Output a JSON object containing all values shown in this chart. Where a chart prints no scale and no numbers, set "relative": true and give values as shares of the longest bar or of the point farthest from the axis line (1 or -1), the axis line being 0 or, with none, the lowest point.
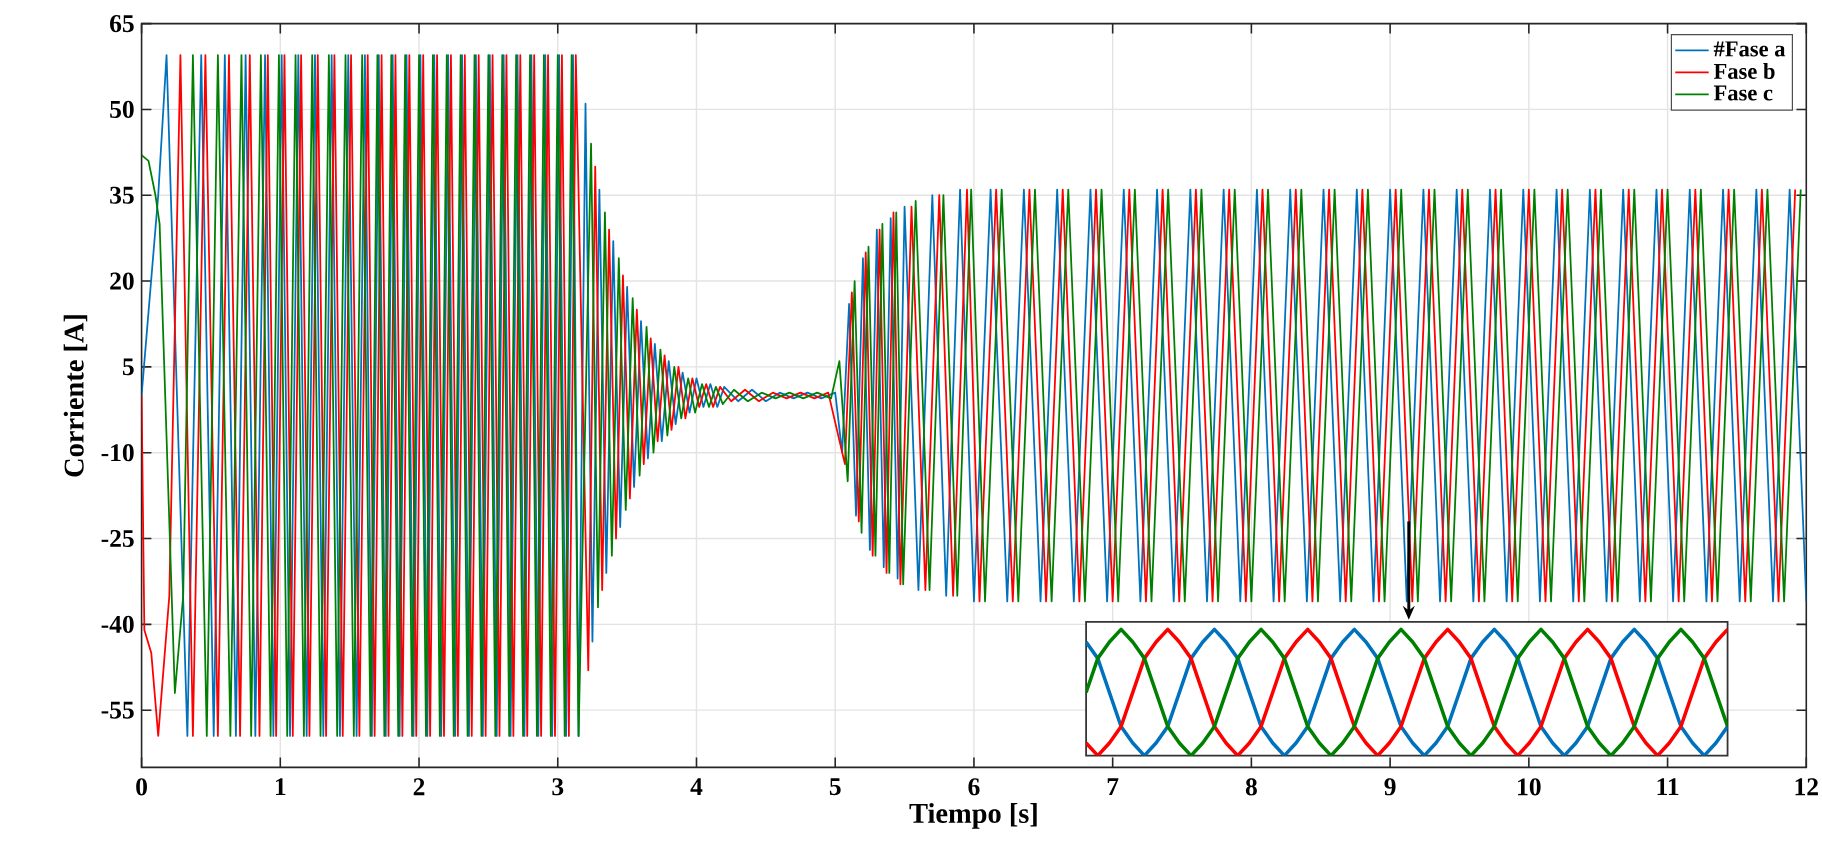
{
  "chart_data": [
    {
      "type": "line",
      "xlabel": "Tiempo [s]",
      "ylabel": "Corriente [A]",
      "xlim": [
        0,
        12
      ],
      "ylim": [
        -65,
        65
      ],
      "xticks": [
        0,
        1,
        2,
        3,
        4,
        5,
        6,
        7,
        8,
        9,
        10,
        11,
        12
      ],
      "yticks": [
        -55,
        -40,
        -25,
        -10,
        5,
        20,
        35,
        50,
        65
      ],
      "grid": true,
      "legend": "top right",
      "series": [
        {
          "name": "#Fase a",
          "color": "#0072bd",
          "x": [
            0,
            0.12,
            0.18,
            0.33,
            0.43,
            0.52,
            0.6,
            0.68,
            0.75,
            0.82,
            0.89,
            0.95,
            1.01,
            1.07,
            1.13,
            1.19,
            1.25,
            1.31,
            1.37,
            1.43,
            1.49,
            1.55,
            1.61,
            1.66,
            1.71,
            1.76,
            1.81,
            1.86,
            1.91,
            1.96,
            2.01,
            2.06,
            2.11,
            2.16,
            2.21,
            2.26,
            2.31,
            2.36,
            2.41,
            2.46,
            2.51,
            2.56,
            2.61,
            2.66,
            2.71,
            2.76,
            2.81,
            2.86,
            2.91,
            2.96,
            3.01,
            3.06,
            3.11,
            3.15,
            3.2,
            3.25,
            3.3,
            3.35,
            3.4,
            3.45,
            3.5,
            3.55,
            3.6,
            3.65,
            3.7,
            3.75,
            3.8,
            3.85,
            3.9,
            3.95,
            4.0,
            4.05,
            4.1,
            4.15,
            4.2,
            4.3,
            4.4,
            4.5,
            4.6,
            4.7,
            4.8,
            4.9,
            5.0,
            5.05,
            5.1,
            5.15,
            5.2,
            5.25,
            5.3,
            5.35,
            5.4,
            5.45,
            5.5,
            5.6,
            5.7,
            5.8,
            5.9,
            6.0,
            6.12,
            6.24,
            6.36,
            6.48,
            6.6,
            6.72,
            6.84,
            6.96,
            7.08,
            7.2,
            7.32,
            7.44,
            7.56,
            7.68,
            7.8,
            7.92,
            8.04,
            8.16,
            8.28,
            8.4,
            8.52,
            8.64,
            8.76,
            8.88,
            9.0,
            9.12,
            9.24,
            9.36,
            9.48,
            9.6,
            9.72,
            9.84,
            9.96,
            10.08,
            10.2,
            10.32,
            10.44,
            10.56,
            10.68,
            10.8,
            10.92,
            11.04,
            11.16,
            11.28,
            11.4,
            11.52,
            11.64,
            11.76,
            11.88,
            12.0
          ],
          "values": [
            0,
            35,
            59.5,
            -59.5,
            59.5,
            -59.5,
            59.5,
            -59.5,
            59.5,
            -59.5,
            59.5,
            -59.5,
            59.5,
            -59.5,
            59.5,
            -59.5,
            59.5,
            -59.5,
            59.5,
            -59.5,
            59.5,
            -59.5,
            59.5,
            -59.5,
            59.5,
            -59.5,
            59.5,
            -59.5,
            59.5,
            -59.5,
            59.5,
            -59.5,
            59.5,
            -59.5,
            59.5,
            -59.5,
            59.5,
            -59.5,
            59.5,
            -59.5,
            59.5,
            -59.5,
            59.5,
            -59.5,
            59.5,
            -59.5,
            59.5,
            -59.5,
            59.5,
            -59.5,
            59.5,
            -59.5,
            59.5,
            -59.5,
            51,
            -43,
            36,
            -31,
            27,
            -23,
            19,
            -16,
            13,
            -11,
            9,
            -8,
            6,
            -5,
            4,
            -3,
            3,
            -2,
            2,
            -2,
            1.5,
            -1,
            1,
            -1,
            0.5,
            -0.5,
            0.5,
            -0.5,
            0.5,
            -10,
            16,
            -21,
            24,
            -27,
            29,
            -30,
            31,
            -32,
            33,
            -34,
            35,
            -35,
            36,
            -36,
            36,
            -36,
            36,
            -36,
            36,
            -36,
            36,
            -36,
            36,
            -36,
            36,
            -36,
            36,
            -36,
            36,
            -36,
            36,
            -36,
            36,
            -36,
            36,
            -36,
            36,
            -36,
            36,
            -36,
            36,
            -36,
            36,
            -36,
            36,
            -36,
            36,
            -36,
            36,
            -36,
            36,
            -36,
            36,
            -36,
            36,
            -36,
            36,
            -36,
            36,
            -36,
            36,
            -36,
            36,
            -36
          ]
        },
        {
          "name": "Fase b",
          "color": "#ff0000",
          "x": [
            0,
            0.02,
            0.07,
            0.12,
            0.2,
            0.28,
            0.37,
            0.46,
            0.55,
            0.63,
            0.71,
            0.78,
            0.85,
            0.91,
            0.97,
            1.03,
            1.09,
            1.15,
            1.21,
            1.27,
            1.33,
            1.39,
            1.45,
            1.51,
            1.57,
            1.63,
            1.68,
            1.73,
            1.78,
            1.83,
            1.88,
            1.93,
            1.98,
            2.03,
            2.08,
            2.13,
            2.18,
            2.23,
            2.28,
            2.33,
            2.38,
            2.43,
            2.48,
            2.53,
            2.58,
            2.63,
            2.68,
            2.73,
            2.78,
            2.83,
            2.88,
            2.93,
            2.98,
            3.03,
            3.08,
            3.13,
            3.22,
            3.27,
            3.32,
            3.37,
            3.42,
            3.47,
            3.52,
            3.57,
            3.62,
            3.67,
            3.72,
            3.77,
            3.82,
            3.87,
            3.92,
            3.97,
            4.02,
            4.07,
            4.12,
            4.17,
            4.25,
            4.35,
            4.45,
            4.55,
            4.65,
            4.75,
            4.85,
            4.95,
            5.07,
            5.12,
            5.17,
            5.22,
            5.27,
            5.32,
            5.37,
            5.42,
            5.47,
            5.55,
            5.65,
            5.75,
            5.85,
            5.95,
            6.04,
            6.16,
            6.28,
            6.4,
            6.52,
            6.64,
            6.76,
            6.88,
            7.0,
            7.12,
            7.24,
            7.36,
            7.48,
            7.6,
            7.72,
            7.84,
            7.96,
            8.08,
            8.2,
            8.32,
            8.44,
            8.56,
            8.68,
            8.8,
            8.92,
            9.04,
            9.16,
            9.28,
            9.4,
            9.52,
            9.64,
            9.76,
            9.88,
            10.0,
            10.12,
            10.24,
            10.36,
            10.48,
            10.6,
            10.72,
            10.84,
            10.96,
            11.08,
            11.2,
            11.32,
            11.44,
            11.56,
            11.68,
            11.8,
            11.92
          ],
          "values": [
            0,
            -41,
            -45,
            -59.5,
            -35,
            59.5,
            -59.5,
            59.5,
            -59.5,
            59.5,
            -59.5,
            59.5,
            -59.5,
            59.5,
            -59.5,
            59.5,
            -59.5,
            59.5,
            -59.5,
            59.5,
            -59.5,
            59.5,
            -59.5,
            59.5,
            -59.5,
            59.5,
            -59.5,
            59.5,
            -59.5,
            59.5,
            -59.5,
            59.5,
            -59.5,
            59.5,
            -59.5,
            59.5,
            -59.5,
            59.5,
            -59.5,
            59.5,
            -59.5,
            59.5,
            -59.5,
            59.5,
            -59.5,
            59.5,
            -59.5,
            59.5,
            -59.5,
            59.5,
            -59.5,
            59.5,
            -59.5,
            59.5,
            -59.5,
            59.5,
            -48,
            40,
            -34,
            29,
            -25,
            21,
            -18,
            15,
            -12,
            10,
            -8,
            7,
            -6,
            5,
            -4,
            3,
            -2,
            2,
            -2,
            1.5,
            -1,
            1,
            -1,
            0.5,
            -0.5,
            0.5,
            -0.5,
            0.5,
            -12,
            18,
            -22,
            25,
            -28,
            29,
            -31,
            32,
            -33,
            33,
            -34,
            35,
            -35,
            36,
            -36,
            36,
            -36,
            36,
            -36,
            36,
            -36,
            36,
            -36,
            36,
            -36,
            36,
            -36,
            36,
            -36,
            36,
            -36,
            36,
            -36,
            36,
            -36,
            36,
            -36,
            36,
            -36,
            36,
            -36,
            36,
            -36,
            36,
            -36,
            36,
            -36,
            36,
            -36,
            36,
            -36,
            36,
            -36,
            36,
            -36,
            36,
            -36,
            36,
            -36,
            36,
            -36,
            36,
            -36,
            36
          ]
        },
        {
          "name": "Fase c",
          "color": "#008000",
          "x": [
            0,
            0.05,
            0.1,
            0.13,
            0.24,
            0.3,
            0.37,
            0.47,
            0.55,
            0.64,
            0.72,
            0.79,
            0.86,
            0.93,
            0.99,
            1.05,
            1.11,
            1.17,
            1.23,
            1.29,
            1.35,
            1.41,
            1.47,
            1.53,
            1.59,
            1.65,
            1.7,
            1.75,
            1.8,
            1.85,
            1.9,
            1.95,
            2.0,
            2.05,
            2.1,
            2.15,
            2.2,
            2.25,
            2.3,
            2.35,
            2.4,
            2.45,
            2.5,
            2.55,
            2.6,
            2.65,
            2.7,
            2.75,
            2.8,
            2.85,
            2.9,
            2.95,
            3.0,
            3.05,
            3.1,
            3.15,
            3.24,
            3.29,
            3.34,
            3.39,
            3.44,
            3.49,
            3.54,
            3.59,
            3.64,
            3.69,
            3.74,
            3.79,
            3.84,
            3.89,
            3.94,
            3.99,
            4.04,
            4.09,
            4.14,
            4.19,
            4.27,
            4.37,
            4.47,
            4.57,
            4.67,
            4.77,
            4.87,
            4.97,
            5.03,
            5.09,
            5.14,
            5.19,
            5.24,
            5.29,
            5.34,
            5.39,
            5.44,
            5.49,
            5.58,
            5.68,
            5.78,
            5.88,
            5.98,
            6.08,
            6.2,
            6.32,
            6.44,
            6.56,
            6.68,
            6.8,
            6.92,
            7.04,
            7.16,
            7.28,
            7.4,
            7.52,
            7.64,
            7.76,
            7.88,
            8.0,
            8.12,
            8.24,
            8.36,
            8.48,
            8.6,
            8.72,
            8.84,
            8.96,
            9.08,
            9.2,
            9.32,
            9.44,
            9.56,
            9.68,
            9.8,
            9.92,
            10.04,
            10.16,
            10.28,
            10.4,
            10.52,
            10.64,
            10.76,
            10.88,
            11.0,
            11.12,
            11.24,
            11.36,
            11.48,
            11.6,
            11.72,
            11.84,
            11.96
          ],
          "values": [
            42,
            41,
            35,
            30,
            -52,
            -35,
            59.5,
            -59.5,
            59.5,
            -59.5,
            59.5,
            -59.5,
            59.5,
            -59.5,
            59.5,
            -59.5,
            59.5,
            -59.5,
            59.5,
            -59.5,
            59.5,
            -59.5,
            59.5,
            -59.5,
            59.5,
            -59.5,
            59.5,
            -59.5,
            59.5,
            -59.5,
            59.5,
            -59.5,
            59.5,
            -59.5,
            59.5,
            -59.5,
            59.5,
            -59.5,
            59.5,
            -59.5,
            59.5,
            -59.5,
            59.5,
            -59.5,
            59.5,
            -59.5,
            59.5,
            -59.5,
            59.5,
            -59.5,
            59.5,
            -59.5,
            59.5,
            -59.5,
            59.5,
            -59.5,
            44,
            -37,
            32,
            -28,
            24,
            -20,
            17,
            -14,
            12,
            -10,
            8,
            -7,
            5,
            -4,
            3,
            -3,
            2,
            -2,
            1.5,
            -1.5,
            1,
            -1,
            0.5,
            -0.5,
            0.5,
            -0.5,
            0.5,
            -0.5,
            6,
            -15,
            20,
            -24,
            26,
            -28,
            30,
            -31,
            32,
            -33,
            34,
            -34,
            35,
            -35,
            36,
            -36,
            36,
            -36,
            36,
            -36,
            36,
            -36,
            36,
            -36,
            36,
            -36,
            36,
            -36,
            36,
            -36,
            36,
            -36,
            36,
            -36,
            36,
            -36,
            36,
            -36,
            36,
            -36,
            36,
            -36,
            36,
            -36,
            36,
            -36,
            36,
            -36,
            36,
            -36,
            36,
            -36,
            36,
            -36,
            36,
            -36,
            36,
            -36,
            36,
            -36,
            36,
            -36,
            36,
            -36,
            36
          ]
        }
      ]
    },
    {
      "type": "line",
      "relative": true,
      "categories": [
        null,
        null,
        null,
        null,
        null,
        null,
        null,
        null,
        null,
        null,
        null,
        null,
        null,
        null,
        null,
        null,
        null,
        null,
        null,
        null,
        null,
        null,
        null,
        null,
        null,
        null,
        null,
        null,
        null,
        null,
        null,
        null,
        null,
        null,
        null,
        null,
        null,
        null,
        null,
        null,
        null,
        null,
        null,
        null,
        null,
        null,
        null,
        null,
        null,
        null,
        null,
        null,
        null,
        null,
        null,
        null
      ],
      "series": [
        {
          "color": "#0072bd",
          "values": [
            0.9,
            0.77,
            0.5,
            0.23,
            0.1,
            0,
            0.1,
            0.23,
            0.5,
            0.77,
            0.9,
            1,
            0.9,
            0.77,
            0.5,
            0.23,
            0.1,
            0,
            0.1,
            0.23,
            0.5,
            0.77,
            0.9,
            1,
            0.9,
            0.77,
            0.5,
            0.23,
            0.1,
            0,
            0.1,
            0.23,
            0.5,
            0.77,
            0.9,
            1,
            0.9,
            0.77,
            0.5,
            0.23,
            0.1,
            0,
            0.1,
            0.23,
            0.5,
            0.77,
            0.9,
            1,
            0.9,
            0.77,
            0.5,
            0.23,
            0.1,
            0,
            0.1,
            0.23
          ]
        },
        {
          "color": "#ff0000",
          "values": [
            0.1,
            0,
            0.1,
            0.23,
            0.5,
            0.77,
            0.9,
            1,
            0.9,
            0.77,
            0.5,
            0.23,
            0.1,
            0,
            0.1,
            0.23,
            0.5,
            0.77,
            0.9,
            1,
            0.9,
            0.77,
            0.5,
            0.23,
            0.1,
            0,
            0.1,
            0.23,
            0.5,
            0.77,
            0.9,
            1,
            0.9,
            0.77,
            0.5,
            0.23,
            0.1,
            0,
            0.1,
            0.23,
            0.5,
            0.77,
            0.9,
            1,
            0.9,
            0.77,
            0.5,
            0.23,
            0.1,
            0,
            0.1,
            0.23,
            0.5,
            0.77,
            0.9,
            1
          ]
        },
        {
          "color": "#008000",
          "values": [
            0.5,
            0.77,
            0.9,
            1,
            0.9,
            0.77,
            0.5,
            0.23,
            0.1,
            0,
            0.1,
            0.23,
            0.5,
            0.77,
            0.9,
            1,
            0.9,
            0.77,
            0.5,
            0.23,
            0.1,
            0,
            0.1,
            0.23,
            0.5,
            0.77,
            0.9,
            1,
            0.9,
            0.77,
            0.5,
            0.23,
            0.1,
            0,
            0.1,
            0.23,
            0.5,
            0.77,
            0.9,
            1,
            0.9,
            0.77,
            0.5,
            0.23,
            0.1,
            0,
            0.1,
            0.23,
            0.5,
            0.77,
            0.9,
            1,
            0.9,
            0.77,
            0.5,
            0.23
          ]
        }
      ]
    }
  ]
}
